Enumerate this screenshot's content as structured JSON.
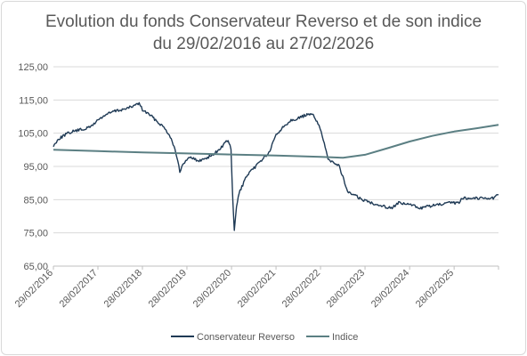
{
  "chart_data": {
    "type": "line",
    "title_line1": "Evolution du fonds Conservateur Reverso et de son indice",
    "title_line2": "du 29/02/2016 au 27/02/2026",
    "ylim": [
      65,
      125
    ],
    "yticks": [
      "65,00",
      "75,00",
      "85,00",
      "95,00",
      "105,00",
      "115,00",
      "125,00"
    ],
    "xlim": [
      "2016-02-29",
      "2026-02-27"
    ],
    "xticks": [
      {
        "date": "2016-02-29",
        "label": "29/02/2016"
      },
      {
        "date": "2017-02-28",
        "label": "28/02/2017"
      },
      {
        "date": "2018-02-28",
        "label": "28/02/2018"
      },
      {
        "date": "2019-02-28",
        "label": "28/02/2019"
      },
      {
        "date": "2020-02-29",
        "label": "29/02/2020"
      },
      {
        "date": "2021-02-28",
        "label": "28/02/2021"
      },
      {
        "date": "2022-02-28",
        "label": "28/02/2022"
      },
      {
        "date": "2023-02-28",
        "label": "28/02/2023"
      },
      {
        "date": "2024-02-29",
        "label": "29/02/2024"
      },
      {
        "date": "2025-02-28",
        "label": "28/02/2025"
      }
    ],
    "grid": true,
    "legend": "bottom",
    "series": [
      {
        "name": "Conservateur Reverso",
        "color": "#1f3a55",
        "points": [
          [
            "2016-02-29",
            101.0
          ],
          [
            "2016-04-01",
            103.0
          ],
          [
            "2016-06-01",
            104.5
          ],
          [
            "2016-08-01",
            105.5
          ],
          [
            "2016-10-01",
            106.0
          ],
          [
            "2016-12-01",
            106.5
          ],
          [
            "2017-01-01",
            107.0
          ],
          [
            "2017-03-01",
            109.0
          ],
          [
            "2017-05-01",
            110.5
          ],
          [
            "2017-07-01",
            111.5
          ],
          [
            "2017-09-01",
            112.0
          ],
          [
            "2017-11-01",
            112.5
          ],
          [
            "2018-01-01",
            113.5
          ],
          [
            "2018-02-01",
            114.0
          ],
          [
            "2018-03-01",
            112.0
          ],
          [
            "2018-05-01",
            110.5
          ],
          [
            "2018-07-01",
            108.5
          ],
          [
            "2018-09-01",
            106.5
          ],
          [
            "2018-10-15",
            104.0
          ],
          [
            "2018-11-15",
            101.0
          ],
          [
            "2018-12-15",
            97.0
          ],
          [
            "2019-01-01",
            93.0
          ],
          [
            "2019-02-01",
            96.0
          ],
          [
            "2019-04-01",
            98.0
          ],
          [
            "2019-06-01",
            96.5
          ],
          [
            "2019-08-01",
            97.5
          ],
          [
            "2019-10-01",
            98.5
          ],
          [
            "2019-12-01",
            100.5
          ],
          [
            "2020-02-01",
            103.0
          ],
          [
            "2020-02-25",
            100.0
          ],
          [
            "2020-03-10",
            85.0
          ],
          [
            "2020-03-23",
            75.5
          ],
          [
            "2020-04-10",
            83.0
          ],
          [
            "2020-05-01",
            87.0
          ],
          [
            "2020-07-01",
            92.0
          ],
          [
            "2020-09-01",
            94.5
          ],
          [
            "2020-11-01",
            97.0
          ],
          [
            "2021-01-01",
            99.0
          ],
          [
            "2021-03-01",
            104.5
          ],
          [
            "2021-05-01",
            107.0
          ],
          [
            "2021-07-01",
            109.0
          ],
          [
            "2021-09-01",
            109.5
          ],
          [
            "2021-11-01",
            110.5
          ],
          [
            "2022-01-01",
            110.5
          ],
          [
            "2022-02-15",
            107.5
          ],
          [
            "2022-03-15",
            104.0
          ],
          [
            "2022-05-01",
            97.0
          ],
          [
            "2022-06-15",
            96.5
          ],
          [
            "2022-08-01",
            95.0
          ],
          [
            "2022-09-15",
            90.0
          ],
          [
            "2022-10-15",
            87.0
          ],
          [
            "2022-12-01",
            86.5
          ],
          [
            "2023-02-01",
            85.0
          ],
          [
            "2023-05-01",
            84.0
          ],
          [
            "2023-08-01",
            83.0
          ],
          [
            "2023-10-01",
            82.5
          ],
          [
            "2023-12-01",
            84.0
          ],
          [
            "2024-03-01",
            83.5
          ],
          [
            "2024-06-01",
            82.5
          ],
          [
            "2024-08-01",
            83.0
          ],
          [
            "2024-11-01",
            83.5
          ],
          [
            "2025-02-01",
            84.0
          ],
          [
            "2025-04-01",
            84.0
          ],
          [
            "2025-05-15",
            85.5
          ],
          [
            "2025-08-01",
            85.5
          ],
          [
            "2025-11-01",
            85.5
          ],
          [
            "2026-01-15",
            85.5
          ],
          [
            "2026-02-27",
            86.5
          ]
        ]
      },
      {
        "name": "Indice",
        "color": "#5b7f83",
        "points": [
          [
            "2016-02-29",
            100.0
          ],
          [
            "2017-02-28",
            99.6
          ],
          [
            "2018-02-28",
            99.2
          ],
          [
            "2019-02-28",
            98.9
          ],
          [
            "2020-02-29",
            98.6
          ],
          [
            "2021-02-28",
            98.3
          ],
          [
            "2022-02-28",
            97.9
          ],
          [
            "2022-09-01",
            97.6
          ],
          [
            "2023-02-28",
            98.5
          ],
          [
            "2023-09-01",
            100.5
          ],
          [
            "2024-02-29",
            102.5
          ],
          [
            "2024-09-01",
            104.2
          ],
          [
            "2025-02-28",
            105.5
          ],
          [
            "2025-09-01",
            106.5
          ],
          [
            "2026-02-27",
            107.5
          ]
        ]
      }
    ]
  }
}
